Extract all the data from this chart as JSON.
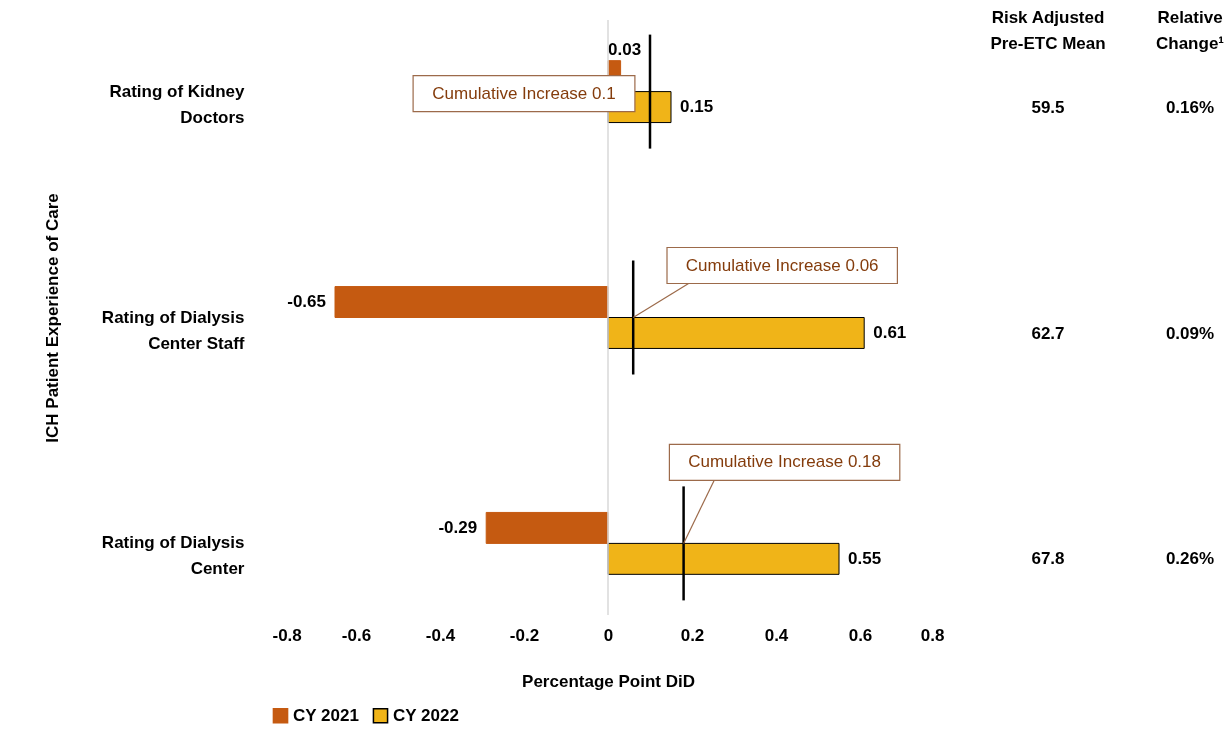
{
  "chart_data": {
    "type": "bar",
    "orientation": "horizontal",
    "xlabel": "Percentage Point DiD",
    "ylabel": "ICH Patient Experience of Care",
    "categories": [
      "Rating of Kidney Doctors",
      "Rating of Dialysis Center Staff",
      "Rating of Dialysis Center"
    ],
    "series": [
      {
        "name": "CY 2021",
        "color": "#c55a11",
        "values": [
          0.03,
          -0.65,
          -0.29
        ]
      },
      {
        "name": "CY 2022",
        "color": "#f0b418",
        "values": [
          0.15,
          0.61,
          0.55
        ]
      }
    ],
    "xlim": [
      -0.8,
      0.8
    ],
    "xticks": [
      -0.8,
      -0.6,
      -0.4,
      -0.2,
      0,
      0.2,
      0.4,
      0.6,
      0.8
    ],
    "data_labels": true,
    "legend": "bottom",
    "ref_lines": [
      {
        "axis": "x",
        "value": 0,
        "color": "#d9d9d9"
      },
      {
        "axis": "x",
        "value": 0.1,
        "label": "Cumulative Increase 0.1",
        "color": "#000000"
      },
      {
        "axis": "x",
        "value": 0.06,
        "label": "Cumulative Increase 0.06",
        "color": "#000000"
      },
      {
        "axis": "x",
        "value": 0.18,
        "label": "Cumulative Increase 0.18",
        "color": "#000000"
      }
    ],
    "annotations": [
      "Risk Adjusted Pre-ETC Mean",
      "Relative Change¹",
      "59.5",
      "0.16%",
      "62.7",
      "0.09%",
      "67.8",
      "0.26%"
    ]
  }
}
